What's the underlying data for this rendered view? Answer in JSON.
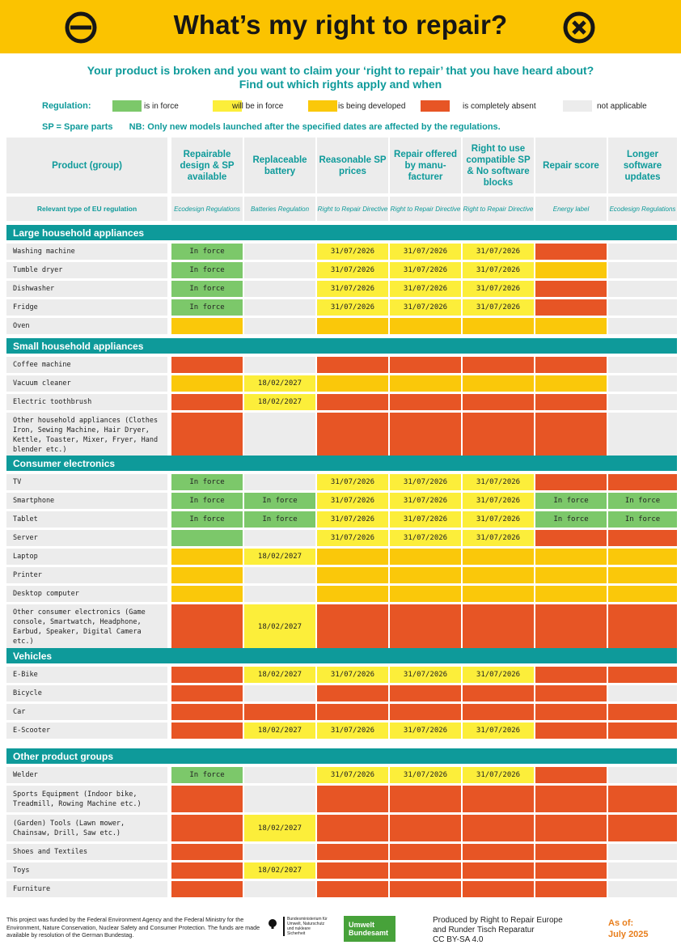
{
  "header": {
    "title": "What’s my right to repair?",
    "left_icon": "prohibited-sign-icon",
    "right_icon": "cross-circle-icon",
    "background": "#fbc300"
  },
  "intro": {
    "line1": "Your product is broken and you want to claim your ‘right to repair’ that you have heard about?",
    "line2": "Find out which rights apply and when"
  },
  "legend": {
    "title": "Regulation:",
    "items": [
      {
        "label": "is in force",
        "color": "#7cc86a"
      },
      {
        "label": "will be in force",
        "color": "#fcee3a"
      },
      {
        "label": "is being developed",
        "color": "#fac80a"
      },
      {
        "label": "is completely absent",
        "color": "#e75525"
      },
      {
        "label": "not applicable",
        "color": "#ececec"
      }
    ]
  },
  "notes": {
    "sp": "SP = Spare parts",
    "nb": "NB: Only new models launched after the specified dates are affected by the regulations."
  },
  "columns": [
    {
      "title": "Product (group)",
      "regulation": "Relevant type of EU regulation"
    },
    {
      "title": "Repairable design & SP available",
      "regulation": "Ecodesign Regulations"
    },
    {
      "title": "Replaceable battery",
      "regulation": "Batteries Regulation"
    },
    {
      "title": "Reasonable SP prices",
      "regulation": "Right to Repair Directive"
    },
    {
      "title": "Repair offered by manu-facturer",
      "regulation": "Right to Repair Directive"
    },
    {
      "title": "Right to use compatible SP & No software blocks",
      "regulation": "Right to Repair Directive"
    },
    {
      "title": "Repair score",
      "regulation": "Energy label"
    },
    {
      "title": "Longer software updates",
      "regulation": "Ecodesign Regulations"
    }
  ],
  "status_colors": {
    "g": "#7cc86a",
    "y": "#fcee3a",
    "o": "#fac80a",
    "r": "#e75525",
    "n": "#ececec"
  },
  "sections": [
    {
      "name": "Large household appliances",
      "rows": [
        {
          "product": "Washing machine",
          "cells": [
            [
              "g",
              "In force"
            ],
            [
              "n",
              ""
            ],
            [
              "y",
              "31/07/2026"
            ],
            [
              "y",
              "31/07/2026"
            ],
            [
              "y",
              "31/07/2026"
            ],
            [
              "r",
              ""
            ],
            [
              "n",
              ""
            ]
          ]
        },
        {
          "product": "Tumble dryer",
          "cells": [
            [
              "g",
              "In force"
            ],
            [
              "n",
              ""
            ],
            [
              "y",
              "31/07/2026"
            ],
            [
              "y",
              "31/07/2026"
            ],
            [
              "y",
              "31/07/2026"
            ],
            [
              "o",
              ""
            ],
            [
              "n",
              ""
            ]
          ]
        },
        {
          "product": "Dishwasher",
          "cells": [
            [
              "g",
              "In force"
            ],
            [
              "n",
              ""
            ],
            [
              "y",
              "31/07/2026"
            ],
            [
              "y",
              "31/07/2026"
            ],
            [
              "y",
              "31/07/2026"
            ],
            [
              "r",
              ""
            ],
            [
              "n",
              ""
            ]
          ]
        },
        {
          "product": "Fridge",
          "cells": [
            [
              "g",
              "In force"
            ],
            [
              "n",
              ""
            ],
            [
              "y",
              "31/07/2026"
            ],
            [
              "y",
              "31/07/2026"
            ],
            [
              "y",
              "31/07/2026"
            ],
            [
              "r",
              ""
            ],
            [
              "n",
              ""
            ]
          ]
        },
        {
          "product": "Oven",
          "cells": [
            [
              "o",
              ""
            ],
            [
              "n",
              ""
            ],
            [
              "o",
              ""
            ],
            [
              "o",
              ""
            ],
            [
              "o",
              ""
            ],
            [
              "o",
              ""
            ],
            [
              "n",
              ""
            ]
          ]
        }
      ]
    },
    {
      "name": "Small household appliances",
      "rows": [
        {
          "product": "Coffee machine",
          "cells": [
            [
              "r",
              ""
            ],
            [
              "n",
              ""
            ],
            [
              "r",
              ""
            ],
            [
              "r",
              ""
            ],
            [
              "r",
              ""
            ],
            [
              "r",
              ""
            ],
            [
              "n",
              ""
            ]
          ]
        },
        {
          "product": "Vacuum cleaner",
          "cells": [
            [
              "o",
              ""
            ],
            [
              "y",
              "18/02/2027"
            ],
            [
              "o",
              ""
            ],
            [
              "o",
              ""
            ],
            [
              "o",
              ""
            ],
            [
              "o",
              ""
            ],
            [
              "n",
              ""
            ]
          ]
        },
        {
          "product": "Electric toothbrush",
          "cells": [
            [
              "r",
              ""
            ],
            [
              "y",
              "18/02/2027"
            ],
            [
              "r",
              ""
            ],
            [
              "r",
              ""
            ],
            [
              "r",
              ""
            ],
            [
              "r",
              ""
            ],
            [
              "n",
              ""
            ]
          ]
        },
        {
          "product": "Other household appliances (Clothes Iron, Sewing Machine, Hair Dryer, Kettle, Toaster, Mixer, Fryer, Hand blender etc.)",
          "cells": [
            [
              "r",
              ""
            ],
            [
              "n",
              ""
            ],
            [
              "r",
              ""
            ],
            [
              "r",
              ""
            ],
            [
              "r",
              ""
            ],
            [
              "r",
              ""
            ],
            [
              "n",
              ""
            ]
          ]
        }
      ]
    },
    {
      "name": "Consumer electronics",
      "rows": [
        {
          "product": "TV",
          "cells": [
            [
              "g",
              "In force"
            ],
            [
              "n",
              ""
            ],
            [
              "y",
              "31/07/2026"
            ],
            [
              "y",
              "31/07/2026"
            ],
            [
              "y",
              "31/07/2026"
            ],
            [
              "r",
              ""
            ],
            [
              "r",
              ""
            ]
          ]
        },
        {
          "product": "Smartphone",
          "cells": [
            [
              "g",
              "In force"
            ],
            [
              "g",
              "In force"
            ],
            [
              "y",
              "31/07/2026"
            ],
            [
              "y",
              "31/07/2026"
            ],
            [
              "y",
              "31/07/2026"
            ],
            [
              "g",
              "In force"
            ],
            [
              "g",
              "In force"
            ]
          ]
        },
        {
          "product": "Tablet",
          "cells": [
            [
              "g",
              "In force"
            ],
            [
              "g",
              "In force"
            ],
            [
              "y",
              "31/07/2026"
            ],
            [
              "y",
              "31/07/2026"
            ],
            [
              "y",
              "31/07/2026"
            ],
            [
              "g",
              "In force"
            ],
            [
              "g",
              "In force"
            ]
          ]
        },
        {
          "product": "Server",
          "cells": [
            [
              "g",
              ""
            ],
            [
              "n",
              ""
            ],
            [
              "y",
              "31/07/2026"
            ],
            [
              "y",
              "31/07/2026"
            ],
            [
              "y",
              "31/07/2026"
            ],
            [
              "r",
              ""
            ],
            [
              "r",
              ""
            ]
          ]
        },
        {
          "product": "Laptop",
          "cells": [
            [
              "o",
              ""
            ],
            [
              "y",
              "18/02/2027"
            ],
            [
              "o",
              ""
            ],
            [
              "o",
              ""
            ],
            [
              "o",
              ""
            ],
            [
              "o",
              ""
            ],
            [
              "o",
              ""
            ]
          ]
        },
        {
          "product": "Printer",
          "cells": [
            [
              "o",
              ""
            ],
            [
              "n",
              ""
            ],
            [
              "o",
              ""
            ],
            [
              "o",
              ""
            ],
            [
              "o",
              ""
            ],
            [
              "o",
              ""
            ],
            [
              "o",
              ""
            ]
          ]
        },
        {
          "product": "Desktop computer",
          "cells": [
            [
              "o",
              ""
            ],
            [
              "n",
              ""
            ],
            [
              "o",
              ""
            ],
            [
              "o",
              ""
            ],
            [
              "o",
              ""
            ],
            [
              "o",
              ""
            ],
            [
              "o",
              ""
            ]
          ]
        },
        {
          "product": "Other consumer electronics (Game console, Smartwatch, Headphone, Earbud, Speaker, Digital Camera etc.)",
          "cells": [
            [
              "r",
              ""
            ],
            [
              "y",
              "18/02/2027"
            ],
            [
              "r",
              ""
            ],
            [
              "r",
              ""
            ],
            [
              "r",
              ""
            ],
            [
              "r",
              ""
            ],
            [
              "r",
              ""
            ]
          ]
        }
      ]
    },
    {
      "name": "Vehicles",
      "rows": [
        {
          "product": "E-Bike",
          "cells": [
            [
              "r",
              ""
            ],
            [
              "y",
              "18/02/2027"
            ],
            [
              "y",
              "31/07/2026"
            ],
            [
              "y",
              "31/07/2026"
            ],
            [
              "y",
              "31/07/2026"
            ],
            [
              "r",
              ""
            ],
            [
              "r",
              ""
            ]
          ]
        },
        {
          "product": "Bicycle",
          "cells": [
            [
              "r",
              ""
            ],
            [
              "n",
              ""
            ],
            [
              "r",
              ""
            ],
            [
              "r",
              ""
            ],
            [
              "r",
              ""
            ],
            [
              "r",
              ""
            ],
            [
              "n",
              ""
            ]
          ]
        },
        {
          "product": "Car",
          "cells": [
            [
              "r",
              ""
            ],
            [
              "r",
              ""
            ],
            [
              "r",
              ""
            ],
            [
              "r",
              ""
            ],
            [
              "r",
              ""
            ],
            [
              "r",
              ""
            ],
            [
              "r",
              ""
            ]
          ]
        },
        {
          "product": "E-Scooter",
          "cells": [
            [
              "r",
              ""
            ],
            [
              "y",
              "18/02/2027"
            ],
            [
              "y",
              "31/07/2026"
            ],
            [
              "y",
              "31/07/2026"
            ],
            [
              "y",
              "31/07/2026"
            ],
            [
              "r",
              ""
            ],
            [
              "r",
              ""
            ]
          ]
        }
      ]
    },
    {
      "name": "Other product groups",
      "rows": [
        {
          "product": "Welder",
          "cells": [
            [
              "g",
              "In force"
            ],
            [
              "n",
              ""
            ],
            [
              "y",
              "31/07/2026"
            ],
            [
              "y",
              "31/07/2026"
            ],
            [
              "y",
              "31/07/2026"
            ],
            [
              "r",
              ""
            ],
            [
              "n",
              ""
            ]
          ]
        },
        {
          "product": "Sports Equipment (Indoor bike, Treadmill, Rowing Machine etc.)",
          "cells": [
            [
              "r",
              ""
            ],
            [
              "n",
              ""
            ],
            [
              "r",
              ""
            ],
            [
              "r",
              ""
            ],
            [
              "r",
              ""
            ],
            [
              "r",
              ""
            ],
            [
              "r",
              ""
            ]
          ]
        },
        {
          "product": "(Garden) Tools (Lawn mower, Chainsaw, Drill, Saw etc.)",
          "cells": [
            [
              "r",
              ""
            ],
            [
              "y",
              "18/02/2027"
            ],
            [
              "r",
              ""
            ],
            [
              "r",
              ""
            ],
            [
              "r",
              ""
            ],
            [
              "r",
              ""
            ],
            [
              "r",
              ""
            ]
          ]
        },
        {
          "product": "Shoes and Textiles",
          "cells": [
            [
              "r",
              ""
            ],
            [
              "n",
              ""
            ],
            [
              "r",
              ""
            ],
            [
              "r",
              ""
            ],
            [
              "r",
              ""
            ],
            [
              "r",
              ""
            ],
            [
              "n",
              ""
            ]
          ]
        },
        {
          "product": "Toys",
          "cells": [
            [
              "r",
              ""
            ],
            [
              "y",
              "18/02/2027"
            ],
            [
              "r",
              ""
            ],
            [
              "r",
              ""
            ],
            [
              "r",
              ""
            ],
            [
              "r",
              ""
            ],
            [
              "n",
              ""
            ]
          ]
        },
        {
          "product": "Furniture",
          "cells": [
            [
              "r",
              ""
            ],
            [
              "n",
              ""
            ],
            [
              "r",
              ""
            ],
            [
              "r",
              ""
            ],
            [
              "r",
              ""
            ],
            [
              "r",
              ""
            ],
            [
              "n",
              ""
            ]
          ]
        }
      ]
    }
  ],
  "footer": {
    "funding": "This project was funded by the Federal Environment Agency and the Federal Ministry for the Environment, Nature Conservation, Nuclear Safety and Consumer Protection. The funds are made available by resolution of the German Bundestag.",
    "ministry": "Bundesministerium für Umwelt, Naturschutz und nukleare Sicherheit",
    "agency_line1": "Umwelt",
    "agency_line2": "Bundesamt",
    "produced_line1": "Produced by Right to Repair Europe",
    "produced_line2": "and Runder Tisch Reparatur",
    "license": "CC BY-SA 4.0",
    "asof_label": "As of:",
    "asof_date": "July 2025"
  }
}
